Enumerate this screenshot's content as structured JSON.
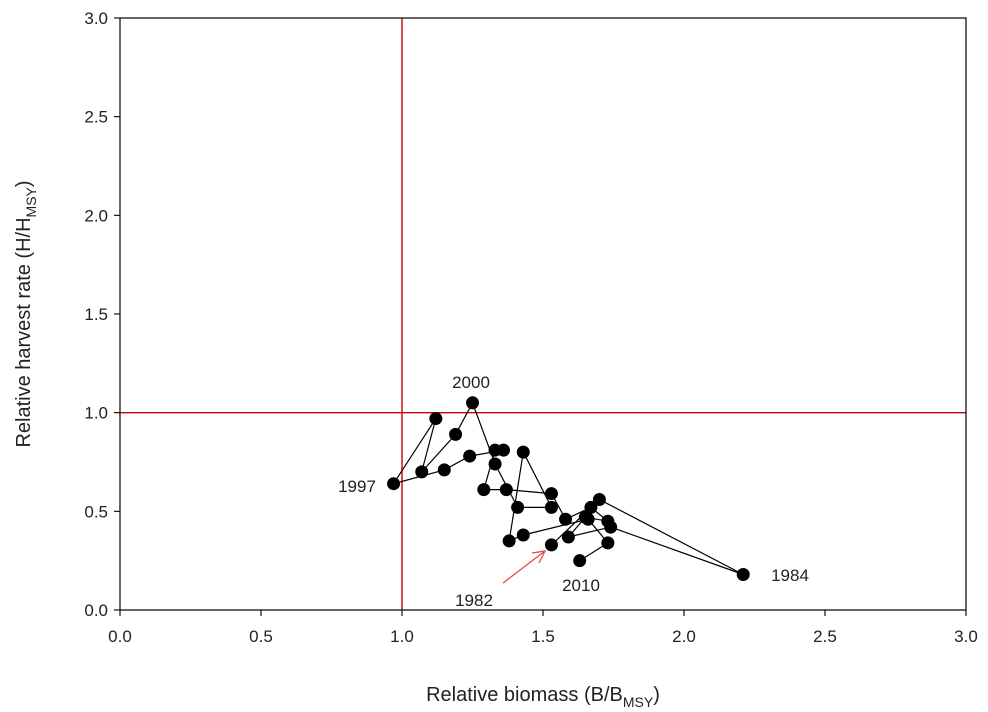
{
  "chart_data": {
    "type": "scatter",
    "xlabel": {
      "main": "Relative biomass (B/B",
      "sub": "MSY",
      "close": ")"
    },
    "ylabel": {
      "main": "Relative harvest rate (H/H",
      "sub": "MSY",
      "close": ")"
    },
    "xlim": [
      0,
      3
    ],
    "ylim": [
      0,
      3
    ],
    "x_ticks": [
      "0.0",
      "0.5",
      "1.0",
      "1.5",
      "2.0",
      "2.5",
      "3.0"
    ],
    "y_ticks": [
      "0.0",
      "0.5",
      "1.0",
      "1.5",
      "2.0",
      "2.5",
      "3.0"
    ],
    "reference_lines": {
      "x": 1.0,
      "y": 1.0,
      "color": "#cc0000"
    },
    "grid": false,
    "marker_color": "#000000",
    "line_color": "#000000",
    "series": [
      {
        "points": [
          {
            "x": 1.53,
            "y": 0.33
          },
          {
            "x": 1.7,
            "y": 0.56
          },
          {
            "x": 2.21,
            "y": 0.18
          },
          {
            "x": 1.74,
            "y": 0.42
          },
          {
            "x": 1.59,
            "y": 0.37
          },
          {
            "x": 1.65,
            "y": 0.47
          },
          {
            "x": 1.73,
            "y": 0.45
          },
          {
            "x": 1.67,
            "y": 0.52
          },
          {
            "x": 1.58,
            "y": 0.46
          },
          {
            "x": 1.53,
            "y": 0.59
          },
          {
            "x": 1.37,
            "y": 0.61
          },
          {
            "x": 1.29,
            "y": 0.61
          },
          {
            "x": 1.33,
            "y": 0.81
          },
          {
            "x": 1.36,
            "y": 0.81
          },
          {
            "x": 1.24,
            "y": 0.78
          },
          {
            "x": 1.15,
            "y": 0.71
          },
          {
            "x": 0.97,
            "y": 0.64
          },
          {
            "x": 1.12,
            "y": 0.97
          },
          {
            "x": 1.07,
            "y": 0.7
          },
          {
            "x": 1.19,
            "y": 0.89
          },
          {
            "x": 1.25,
            "y": 1.05
          },
          {
            "x": 1.33,
            "y": 0.74
          },
          {
            "x": 1.41,
            "y": 0.52
          },
          {
            "x": 1.53,
            "y": 0.52
          },
          {
            "x": 1.43,
            "y": 0.8
          },
          {
            "x": 1.38,
            "y": 0.35
          },
          {
            "x": 1.43,
            "y": 0.38
          },
          {
            "x": 1.66,
            "y": 0.46
          },
          {
            "x": 1.73,
            "y": 0.34
          },
          {
            "x": 1.63,
            "y": 0.25
          }
        ]
      }
    ],
    "annotations": [
      {
        "text": "2000",
        "x": 1.25,
        "y": 1.05
      },
      {
        "text": "1997",
        "x": 0.97,
        "y": 0.64
      },
      {
        "text": "1984",
        "x": 2.21,
        "y": 0.18
      },
      {
        "text": "2010",
        "x": 1.63,
        "y": 0.25
      },
      {
        "text": "1982",
        "x": 1.53,
        "y": 0.33
      }
    ]
  }
}
